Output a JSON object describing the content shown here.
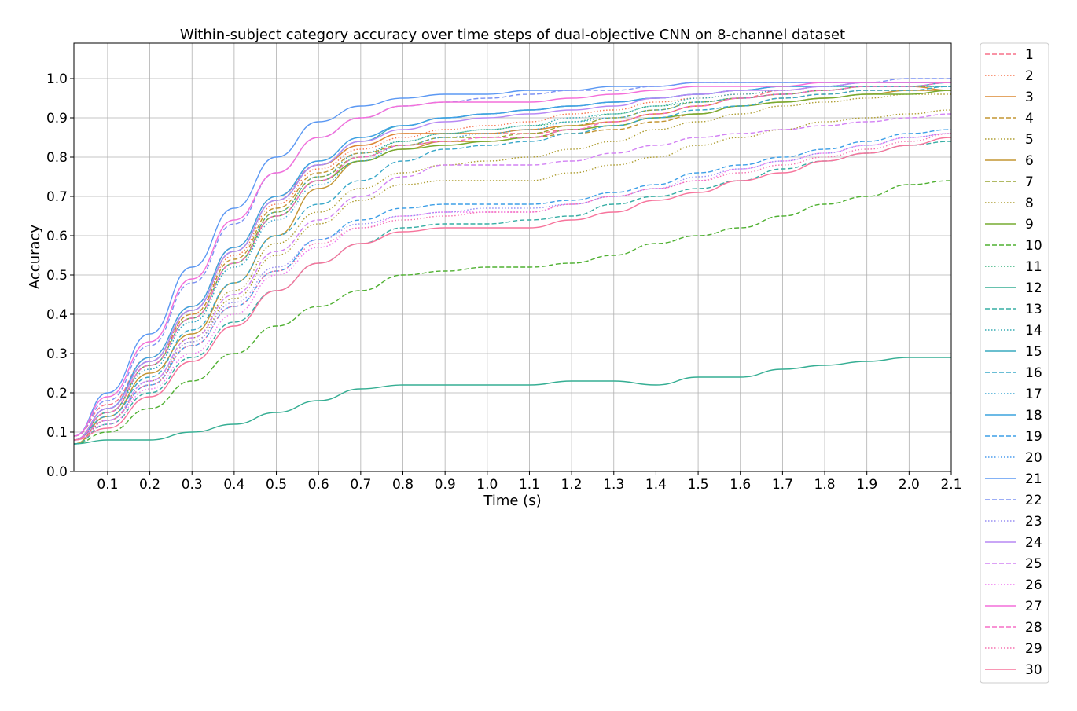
{
  "chart_data": {
    "type": "line",
    "title": "Within-subject category accuracy over time steps of dual-objective CNN on 8-channel dataset",
    "xlabel": "Time (s)",
    "ylabel": "Accuracy",
    "xlim": [
      0.02,
      2.1
    ],
    "ylim": [
      0.0,
      1.09
    ],
    "xticks": [
      "0.1",
      "0.2",
      "0.3",
      "0.4",
      "0.5",
      "0.6",
      "0.7",
      "0.8",
      "0.9",
      "1.0",
      "1.1",
      "1.2",
      "1.3",
      "1.4",
      "1.5",
      "1.6",
      "1.7",
      "1.8",
      "1.9",
      "2.0",
      "2.1"
    ],
    "yticks": [
      "0.0",
      "0.1",
      "0.2",
      "0.3",
      "0.4",
      "0.5",
      "0.6",
      "0.7",
      "0.8",
      "0.9",
      "1.0"
    ],
    "grid": true,
    "legend_position": "outside-right",
    "x": [
      0.02,
      0.1,
      0.2,
      0.3,
      0.4,
      0.5,
      0.6,
      0.7,
      0.8,
      0.9,
      1.0,
      1.1,
      1.2,
      1.3,
      1.4,
      1.5,
      1.6,
      1.7,
      1.8,
      1.9,
      2.0,
      2.1
    ],
    "series": [
      {
        "name": "1",
        "color": "#f77189",
        "dash": "dashed",
        "values": [
          0.09,
          0.17,
          0.29,
          0.42,
          0.57,
          0.7,
          0.78,
          0.83,
          0.86,
          0.86,
          0.86,
          0.86,
          0.87,
          0.89,
          0.91,
          0.93,
          0.95,
          0.97,
          0.98,
          0.99,
          0.99,
          0.99
        ]
      },
      {
        "name": "2",
        "color": "#f7754f",
        "dash": "dotted",
        "values": [
          0.08,
          0.16,
          0.28,
          0.4,
          0.55,
          0.68,
          0.77,
          0.82,
          0.85,
          0.87,
          0.88,
          0.89,
          0.91,
          0.92,
          0.94,
          0.95,
          0.96,
          0.97,
          0.98,
          0.99,
          0.99,
          0.99
        ]
      },
      {
        "name": "3",
        "color": "#dc8932",
        "dash": "solid",
        "values": [
          0.08,
          0.16,
          0.28,
          0.41,
          0.56,
          0.69,
          0.78,
          0.83,
          0.86,
          0.86,
          0.86,
          0.87,
          0.88,
          0.89,
          0.91,
          0.93,
          0.95,
          0.96,
          0.97,
          0.98,
          0.98,
          0.97
        ]
      },
      {
        "name": "4",
        "color": "#c39532",
        "dash": "dashed",
        "values": [
          0.08,
          0.15,
          0.27,
          0.4,
          0.54,
          0.67,
          0.76,
          0.81,
          0.83,
          0.84,
          0.84,
          0.85,
          0.86,
          0.87,
          0.89,
          0.91,
          0.93,
          0.95,
          0.96,
          0.97,
          0.97,
          0.97
        ]
      },
      {
        "name": "5",
        "color": "#ae9d31",
        "dash": "dotted",
        "values": [
          0.08,
          0.13,
          0.22,
          0.33,
          0.44,
          0.55,
          0.63,
          0.69,
          0.73,
          0.74,
          0.74,
          0.74,
          0.76,
          0.78,
          0.8,
          0.83,
          0.85,
          0.87,
          0.89,
          0.9,
          0.91,
          0.92
        ]
      },
      {
        "name": "6",
        "color": "#c39532",
        "dash": "solid",
        "values": [
          0.07,
          0.14,
          0.25,
          0.35,
          0.48,
          0.6,
          0.72,
          0.79,
          0.82,
          0.84,
          0.84,
          0.85,
          0.87,
          0.88,
          0.9,
          0.91,
          0.93,
          0.94,
          0.95,
          0.96,
          0.97,
          0.97
        ]
      },
      {
        "name": "7",
        "color": "#97a431",
        "dash": "dashed",
        "values": [
          0.08,
          0.15,
          0.27,
          0.39,
          0.53,
          0.66,
          0.75,
          0.8,
          0.83,
          0.85,
          0.85,
          0.86,
          0.88,
          0.9,
          0.92,
          0.94,
          0.95,
          0.96,
          0.97,
          0.98,
          0.98,
          0.98
        ]
      },
      {
        "name": "8",
        "color": "#ae9d31",
        "dash": "dotted",
        "values": [
          0.07,
          0.13,
          0.23,
          0.34,
          0.46,
          0.58,
          0.66,
          0.72,
          0.76,
          0.78,
          0.79,
          0.8,
          0.82,
          0.84,
          0.87,
          0.89,
          0.91,
          0.93,
          0.94,
          0.95,
          0.96,
          0.96
        ]
      },
      {
        "name": "9",
        "color": "#77ab31",
        "dash": "solid",
        "values": [
          0.08,
          0.15,
          0.27,
          0.39,
          0.53,
          0.65,
          0.74,
          0.79,
          0.82,
          0.83,
          0.84,
          0.85,
          0.87,
          0.88,
          0.9,
          0.91,
          0.93,
          0.94,
          0.95,
          0.96,
          0.96,
          0.97
        ]
      },
      {
        "name": "10",
        "color": "#4fb031",
        "dash": "dashed",
        "values": [
          0.07,
          0.1,
          0.16,
          0.23,
          0.3,
          0.37,
          0.42,
          0.46,
          0.5,
          0.51,
          0.52,
          0.52,
          0.53,
          0.55,
          0.58,
          0.6,
          0.62,
          0.65,
          0.68,
          0.7,
          0.73,
          0.74
        ]
      },
      {
        "name": "11",
        "color": "#33b07a",
        "dash": "dotted",
        "values": [
          0.08,
          0.15,
          0.26,
          0.38,
          0.52,
          0.65,
          0.74,
          0.8,
          0.84,
          0.86,
          0.87,
          0.88,
          0.89,
          0.91,
          0.93,
          0.94,
          0.95,
          0.96,
          0.97,
          0.98,
          0.98,
          0.98
        ]
      },
      {
        "name": "12",
        "color": "#35ae93",
        "dash": "solid",
        "values": [
          0.07,
          0.08,
          0.08,
          0.1,
          0.12,
          0.15,
          0.18,
          0.21,
          0.22,
          0.22,
          0.22,
          0.22,
          0.23,
          0.23,
          0.22,
          0.24,
          0.24,
          0.26,
          0.27,
          0.28,
          0.29,
          0.29
        ]
      },
      {
        "name": "13",
        "color": "#36ada4",
        "dash": "dashed",
        "values": [
          0.07,
          0.12,
          0.2,
          0.29,
          0.38,
          0.46,
          0.53,
          0.58,
          0.62,
          0.63,
          0.63,
          0.64,
          0.65,
          0.68,
          0.7,
          0.72,
          0.74,
          0.77,
          0.79,
          0.81,
          0.83,
          0.84
        ]
      },
      {
        "name": "14",
        "color": "#37abb4",
        "dash": "dotted",
        "values": [
          0.08,
          0.15,
          0.27,
          0.39,
          0.53,
          0.66,
          0.75,
          0.81,
          0.84,
          0.86,
          0.87,
          0.88,
          0.9,
          0.91,
          0.93,
          0.95,
          0.96,
          0.97,
          0.98,
          0.98,
          0.98,
          0.99
        ]
      },
      {
        "name": "15",
        "color": "#38aabf",
        "dash": "solid",
        "values": [
          0.08,
          0.16,
          0.28,
          0.41,
          0.56,
          0.69,
          0.78,
          0.84,
          0.88,
          0.9,
          0.91,
          0.92,
          0.93,
          0.94,
          0.95,
          0.96,
          0.97,
          0.98,
          0.98,
          0.98,
          0.98,
          0.99
        ]
      },
      {
        "name": "16",
        "color": "#39a8c9",
        "dash": "dashed",
        "values": [
          0.08,
          0.14,
          0.24,
          0.36,
          0.48,
          0.6,
          0.68,
          0.74,
          0.79,
          0.82,
          0.83,
          0.84,
          0.86,
          0.88,
          0.9,
          0.92,
          0.93,
          0.95,
          0.96,
          0.97,
          0.97,
          0.98
        ]
      },
      {
        "name": "17",
        "color": "#3aa6d4",
        "dash": "dotted",
        "values": [
          0.08,
          0.15,
          0.26,
          0.38,
          0.52,
          0.64,
          0.73,
          0.79,
          0.83,
          0.85,
          0.86,
          0.87,
          0.89,
          0.9,
          0.92,
          0.94,
          0.95,
          0.96,
          0.97,
          0.98,
          0.98,
          0.98
        ]
      },
      {
        "name": "18",
        "color": "#3ba3de",
        "dash": "solid",
        "values": [
          0.08,
          0.16,
          0.29,
          0.42,
          0.57,
          0.7,
          0.79,
          0.85,
          0.88,
          0.9,
          0.91,
          0.92,
          0.93,
          0.94,
          0.95,
          0.96,
          0.97,
          0.98,
          0.98,
          0.99,
          0.99,
          0.99
        ]
      },
      {
        "name": "19",
        "color": "#3d9fe7",
        "dash": "dashed",
        "values": [
          0.08,
          0.13,
          0.22,
          0.32,
          0.42,
          0.51,
          0.59,
          0.64,
          0.67,
          0.68,
          0.68,
          0.68,
          0.69,
          0.71,
          0.73,
          0.76,
          0.78,
          0.8,
          0.82,
          0.84,
          0.86,
          0.87
        ]
      },
      {
        "name": "20",
        "color": "#4a9bed",
        "dash": "dotted",
        "values": [
          0.08,
          0.16,
          0.28,
          0.41,
          0.56,
          0.69,
          0.79,
          0.85,
          0.88,
          0.9,
          0.91,
          0.92,
          0.93,
          0.94,
          0.95,
          0.96,
          0.97,
          0.98,
          0.98,
          0.99,
          0.99,
          0.99
        ]
      },
      {
        "name": "21",
        "color": "#5b98f3",
        "dash": "solid",
        "values": [
          0.09,
          0.2,
          0.35,
          0.52,
          0.67,
          0.8,
          0.89,
          0.93,
          0.95,
          0.96,
          0.96,
          0.97,
          0.97,
          0.98,
          0.98,
          0.99,
          0.99,
          0.99,
          0.99,
          0.99,
          0.99,
          0.99
        ]
      },
      {
        "name": "22",
        "color": "#7c92f4",
        "dash": "dashed",
        "values": [
          0.09,
          0.18,
          0.32,
          0.48,
          0.63,
          0.76,
          0.85,
          0.9,
          0.93,
          0.94,
          0.95,
          0.96,
          0.97,
          0.97,
          0.98,
          0.99,
          0.99,
          0.99,
          0.99,
          0.99,
          1.0,
          1.0
        ]
      },
      {
        "name": "23",
        "color": "#978ef4",
        "dash": "dotted",
        "values": [
          0.08,
          0.13,
          0.23,
          0.33,
          0.43,
          0.52,
          0.59,
          0.63,
          0.65,
          0.66,
          0.67,
          0.67,
          0.68,
          0.7,
          0.72,
          0.75,
          0.77,
          0.79,
          0.81,
          0.83,
          0.85,
          0.86
        ]
      },
      {
        "name": "24",
        "color": "#b789f4",
        "dash": "solid",
        "values": [
          0.08,
          0.16,
          0.28,
          0.41,
          0.56,
          0.69,
          0.78,
          0.84,
          0.87,
          0.89,
          0.9,
          0.91,
          0.92,
          0.93,
          0.95,
          0.96,
          0.97,
          0.97,
          0.98,
          0.99,
          0.99,
          0.99
        ]
      },
      {
        "name": "25",
        "color": "#d282f4",
        "dash": "dashed",
        "values": [
          0.08,
          0.13,
          0.23,
          0.34,
          0.45,
          0.56,
          0.64,
          0.7,
          0.75,
          0.78,
          0.78,
          0.78,
          0.79,
          0.81,
          0.83,
          0.85,
          0.86,
          0.87,
          0.88,
          0.89,
          0.9,
          0.91
        ]
      },
      {
        "name": "26",
        "color": "#ef76f0",
        "dash": "dotted",
        "values": [
          0.08,
          0.12,
          0.21,
          0.3,
          0.4,
          0.5,
          0.57,
          0.62,
          0.65,
          0.66,
          0.66,
          0.66,
          0.68,
          0.7,
          0.72,
          0.74,
          0.77,
          0.79,
          0.81,
          0.83,
          0.85,
          0.86
        ]
      },
      {
        "name": "27",
        "color": "#f46fda",
        "dash": "solid",
        "values": [
          0.09,
          0.19,
          0.33,
          0.49,
          0.64,
          0.76,
          0.85,
          0.9,
          0.93,
          0.94,
          0.94,
          0.94,
          0.95,
          0.96,
          0.97,
          0.98,
          0.98,
          0.98,
          0.99,
          0.99,
          0.99,
          0.99
        ]
      },
      {
        "name": "28",
        "color": "#f56fc5",
        "dash": "dashed",
        "values": [
          0.08,
          0.15,
          0.27,
          0.39,
          0.53,
          0.65,
          0.74,
          0.8,
          0.83,
          0.84,
          0.85,
          0.85,
          0.87,
          0.89,
          0.91,
          0.93,
          0.95,
          0.96,
          0.97,
          0.98,
          0.98,
          0.99
        ]
      },
      {
        "name": "29",
        "color": "#f671b0",
        "dash": "dotted",
        "values": [
          0.08,
          0.13,
          0.22,
          0.32,
          0.42,
          0.51,
          0.58,
          0.62,
          0.64,
          0.65,
          0.66,
          0.66,
          0.68,
          0.7,
          0.72,
          0.74,
          0.76,
          0.78,
          0.8,
          0.82,
          0.84,
          0.86
        ]
      },
      {
        "name": "30",
        "color": "#f7749c",
        "dash": "solid",
        "values": [
          0.08,
          0.11,
          0.19,
          0.28,
          0.37,
          0.46,
          0.53,
          0.58,
          0.61,
          0.62,
          0.62,
          0.62,
          0.64,
          0.66,
          0.69,
          0.71,
          0.74,
          0.76,
          0.79,
          0.81,
          0.83,
          0.85
        ]
      }
    ]
  }
}
